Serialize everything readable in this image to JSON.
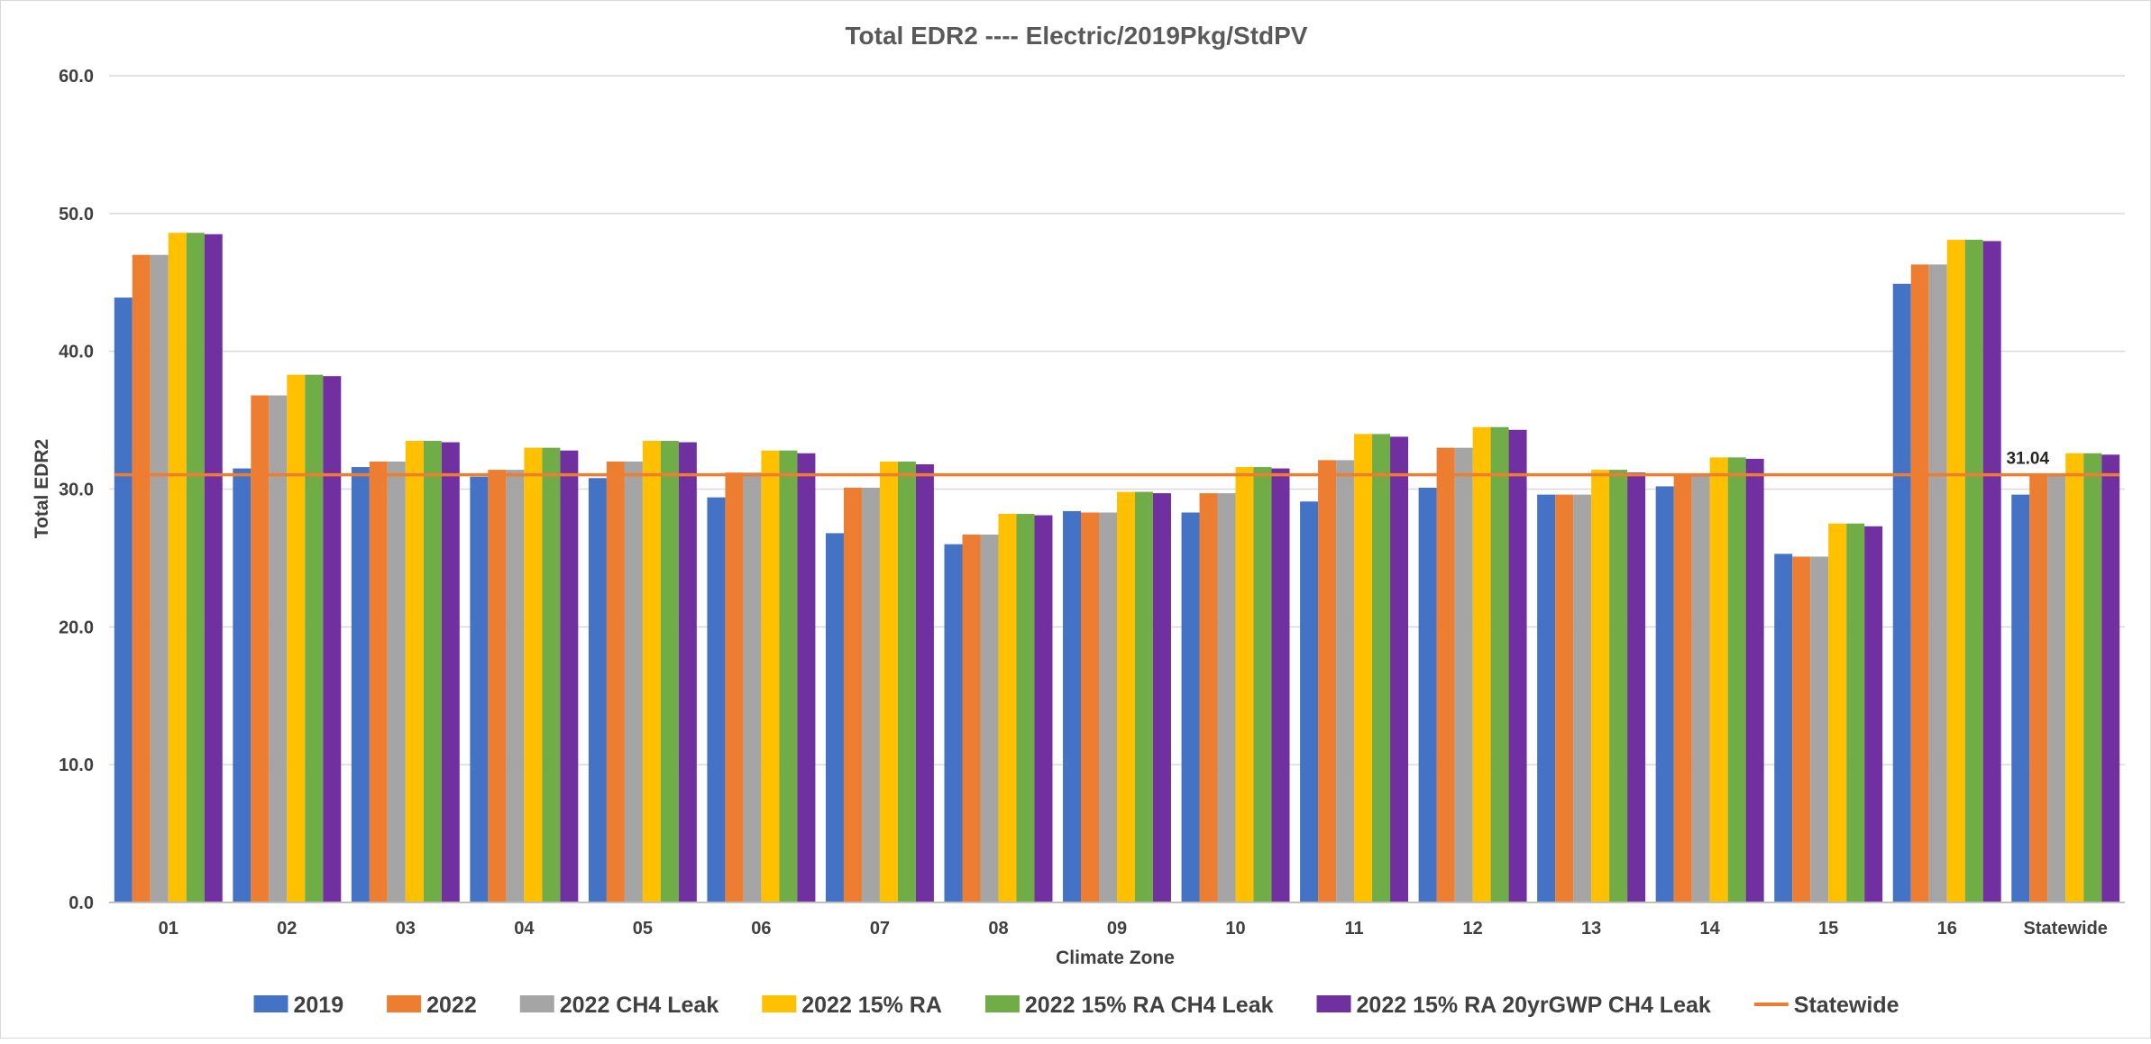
{
  "chart_data": {
    "type": "bar",
    "title": "Total  EDR2 ---- Electric/2019Pkg/StdPV",
    "xlabel": "Climate Zone",
    "ylabel": "Total EDR2",
    "ylim": [
      0,
      60
    ],
    "yticks": [
      "0.0",
      "10.0",
      "20.0",
      "30.0",
      "40.0",
      "50.0",
      "60.0"
    ],
    "grid": true,
    "legend_position": "bottom",
    "categories": [
      "01",
      "02",
      "03",
      "04",
      "05",
      "06",
      "07",
      "08",
      "09",
      "10",
      "11",
      "12",
      "13",
      "14",
      "15",
      "16",
      "Statewide"
    ],
    "series": [
      {
        "name": "2019",
        "color": "#4472C4",
        "values": [
          43.9,
          31.5,
          31.6,
          30.9,
          30.8,
          29.4,
          26.8,
          26.0,
          28.4,
          28.3,
          29.1,
          30.1,
          29.6,
          30.2,
          25.3,
          44.9,
          29.6
        ]
      },
      {
        "name": "2022",
        "color": "#ED7D31",
        "values": [
          47.0,
          36.8,
          32.0,
          31.4,
          32.0,
          31.2,
          30.1,
          26.7,
          28.3,
          29.7,
          32.1,
          33.0,
          29.6,
          31.0,
          25.1,
          46.3,
          31.1
        ]
      },
      {
        "name": "2022 CH4 Leak",
        "color": "#A5A5A5",
        "values": [
          47.0,
          36.8,
          32.0,
          31.4,
          32.0,
          31.2,
          30.1,
          26.7,
          28.3,
          29.7,
          32.1,
          33.0,
          29.6,
          31.0,
          25.1,
          46.3,
          31.1
        ]
      },
      {
        "name": "2022  15% RA",
        "color": "#FFC000",
        "values": [
          48.6,
          38.3,
          33.5,
          33.0,
          33.5,
          32.8,
          32.0,
          28.2,
          29.8,
          31.6,
          34.0,
          34.5,
          31.4,
          32.3,
          27.5,
          48.1,
          32.6
        ]
      },
      {
        "name": "2022  15% RA CH4 Leak",
        "color": "#70AD47",
        "values": [
          48.6,
          38.3,
          33.5,
          33.0,
          33.5,
          32.8,
          32.0,
          28.2,
          29.8,
          31.6,
          34.0,
          34.5,
          31.4,
          32.3,
          27.5,
          48.1,
          32.6
        ]
      },
      {
        "name": "2022  15% RA 20yrGWP CH4 Leak",
        "color": "#7030A0",
        "values": [
          48.5,
          38.2,
          33.4,
          32.8,
          33.4,
          32.6,
          31.8,
          28.1,
          29.7,
          31.5,
          33.8,
          34.3,
          31.2,
          32.2,
          27.3,
          48.0,
          32.5
        ]
      }
    ],
    "reference_line": {
      "name": "Statewide",
      "value": 31.04,
      "label": "31.04",
      "color": "#ED7D31"
    }
  }
}
